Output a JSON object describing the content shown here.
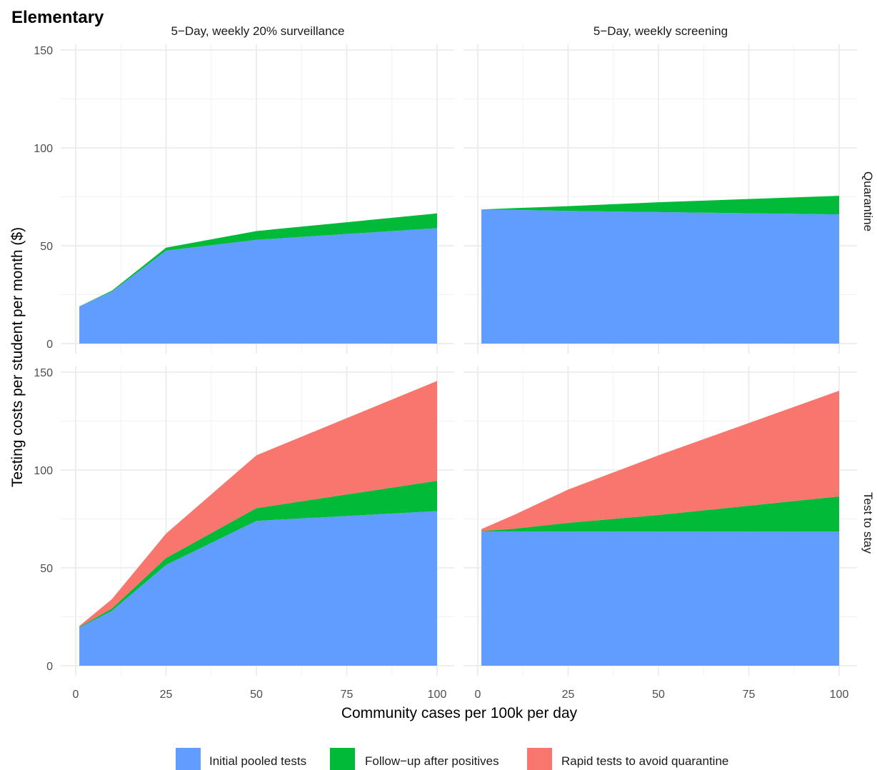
{
  "chart_data": {
    "type": "area",
    "title": "Elementary",
    "xlabel": "Community cases per 100k per day",
    "ylabel": "Testing costs per student per month ($)",
    "xlim": [
      0,
      100
    ],
    "ylim": [
      0,
      150
    ],
    "x_ticks": [
      0,
      25,
      50,
      75,
      100
    ],
    "y_ticks": [
      0,
      50,
      100,
      150
    ],
    "grid": true,
    "legend_position": "bottom",
    "columns": [
      "5−Day, weekly 20% surveillance",
      "5−Day, weekly screening"
    ],
    "rows": [
      "Quarantine",
      "Test to stay"
    ],
    "legend": [
      {
        "name": "Initial pooled tests",
        "color": "#619CFF"
      },
      {
        "name": "Follow−up after positives",
        "color": "#00BA38"
      },
      {
        "name": "Rapid tests to avoid quarantine",
        "color": "#F8766D"
      }
    ],
    "panels": [
      {
        "column": "5−Day, weekly 20% surveillance",
        "row": "Quarantine",
        "x": [
          1,
          10,
          25,
          50,
          100
        ],
        "series": [
          {
            "name": "Initial pooled tests",
            "values": [
              19,
              26.5,
              47.5,
              53,
              59
            ]
          },
          {
            "name": "Follow−up after positives",
            "values": [
              0,
              0.5,
              1.5,
              4.5,
              7.5
            ]
          },
          {
            "name": "Rapid tests to avoid quarantine",
            "values": [
              0,
              0,
              0,
              0,
              0
            ]
          }
        ]
      },
      {
        "column": "5−Day, weekly screening",
        "row": "Quarantine",
        "x": [
          1,
          10,
          25,
          50,
          100
        ],
        "series": [
          {
            "name": "Initial pooled tests",
            "values": [
              68.5,
              68.3,
              67.8,
              67.2,
              66
            ]
          },
          {
            "name": "Follow−up after positives",
            "values": [
              0,
              0.9,
              2.4,
              5,
              9.5
            ]
          },
          {
            "name": "Rapid tests to avoid quarantine",
            "values": [
              0,
              0,
              0,
              0,
              0
            ]
          }
        ]
      },
      {
        "column": "5−Day, weekly 20% surveillance",
        "row": "Test to stay",
        "x": [
          1,
          10,
          25,
          50,
          100
        ],
        "series": [
          {
            "name": "Initial pooled tests",
            "values": [
              19.5,
              28,
              51.5,
              74,
              79
            ]
          },
          {
            "name": "Follow−up after positives",
            "values": [
              0.3,
              1.2,
              3.5,
              6.5,
              15.5
            ]
          },
          {
            "name": "Rapid tests to avoid quarantine",
            "values": [
              0.5,
              4.8,
              12.5,
              27,
              51
            ]
          }
        ]
      },
      {
        "column": "5−Day, weekly screening",
        "row": "Test to stay",
        "x": [
          1,
          10,
          25,
          50,
          100
        ],
        "series": [
          {
            "name": "Initial pooled tests",
            "values": [
              68.5,
              68.5,
              68.5,
              68.5,
              68.5
            ]
          },
          {
            "name": "Follow−up after positives",
            "values": [
              0.3,
              1.5,
              4.5,
              8.5,
              18
            ]
          },
          {
            "name": "Rapid tests to avoid quarantine",
            "values": [
              1,
              7,
              17,
              30.5,
              54
            ]
          }
        ]
      }
    ]
  }
}
